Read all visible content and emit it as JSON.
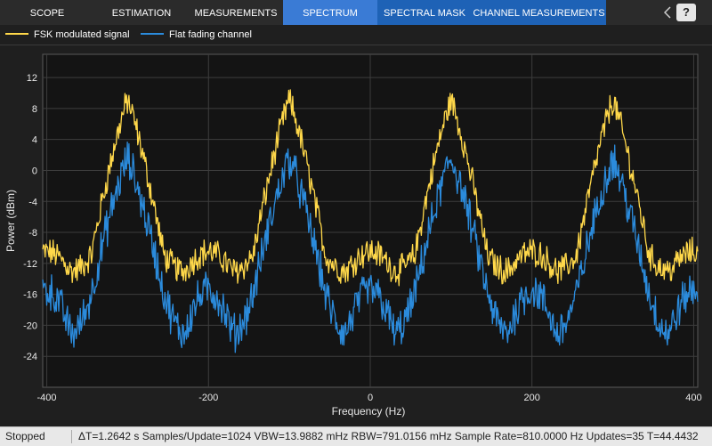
{
  "toolstrip": {
    "tabs": [
      {
        "label": "SCOPE"
      },
      {
        "label": "ESTIMATION"
      },
      {
        "label": "MEASUREMENTS"
      },
      {
        "label": "SPECTRUM"
      },
      {
        "label": "SPECTRAL MASK"
      },
      {
        "label": "CHANNEL MEASUREMENTS"
      }
    ],
    "help_label": "?"
  },
  "legend": {
    "items": [
      {
        "label": "FSK modulated signal",
        "color": "#ffd84a"
      },
      {
        "label": "Flat fading channel",
        "color": "#2b8bdc"
      }
    ]
  },
  "plot": {
    "ylabel": "Power (dBm)",
    "xlabel": "Frequency (Hz)",
    "background": "#141414"
  },
  "chart_data": {
    "type": "line",
    "xlabel": "Frequency (Hz)",
    "ylabel": "Power (dBm)",
    "xlim": [
      -405,
      405
    ],
    "ylim": [
      -28,
      15
    ],
    "xticks": [
      -400,
      -200,
      0,
      200,
      400
    ],
    "yticks": [
      12,
      8,
      4,
      0,
      -4,
      -8,
      -12,
      -16,
      -20,
      -24
    ],
    "grid": true,
    "legend": "top-left",
    "peaks_x": [
      -300,
      -100,
      100,
      300
    ],
    "series": [
      {
        "name": "FSK modulated signal",
        "color": "#ffd84a",
        "peak": 9,
        "floor": -11,
        "dip": -13
      },
      {
        "name": "Flat fading channel",
        "color": "#2b8bdc",
        "peak": 1.5,
        "floor": -16,
        "dip": -21
      }
    ]
  },
  "status": {
    "state": "Stopped",
    "info": "ΔT=1.2642 s  Samples/Update=1024  VBW=13.9882 mHz  RBW=791.0156 mHz  Sample Rate=810.0000 Hz  Updates=35  T=44.4432"
  }
}
